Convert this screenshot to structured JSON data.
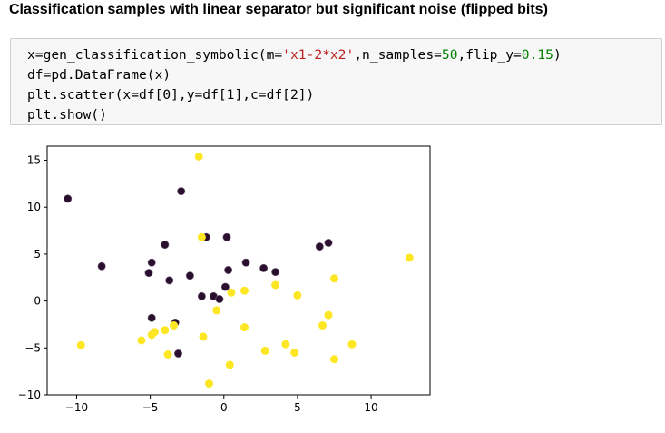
{
  "heading": "Classification samples with linear separator but significant noise (flipped bits)",
  "code": {
    "lines": [
      [
        "x=gen_classification_symbolic(m=",
        "'x1-2*x2'",
        ",n_samples=",
        "50",
        ",flip_y=",
        "0.15",
        ")"
      ],
      [
        "df=pd.DataFrame(x)"
      ],
      [
        "plt.scatter(x=df[0],y=df[1],c=df[2])"
      ],
      [
        "plt.show()"
      ]
    ]
  },
  "chart_data": {
    "type": "scatter",
    "xlim": [
      -12,
      14
    ],
    "ylim": [
      -10,
      16.5
    ],
    "xticks": [
      -10,
      -5,
      0,
      5,
      10
    ],
    "yticks": [
      -10,
      -5,
      0,
      5,
      10,
      15
    ],
    "colors": {
      "0": "#2b0f2e",
      "1": "#fde725"
    },
    "grid": false,
    "series": [
      {
        "class": 0,
        "points": [
          [
            -10.6,
            10.9
          ],
          [
            -8.3,
            3.7
          ],
          [
            -5.1,
            3.0
          ],
          [
            -4.9,
            4.1
          ],
          [
            -4.0,
            6.0
          ],
          [
            -3.7,
            2.2
          ],
          [
            -4.9,
            -1.8
          ],
          [
            -3.3,
            -2.3
          ],
          [
            -3.1,
            -5.6
          ],
          [
            -2.9,
            11.7
          ],
          [
            -2.3,
            2.7
          ],
          [
            -1.5,
            0.5
          ],
          [
            -1.2,
            6.8
          ],
          [
            -0.7,
            0.5
          ],
          [
            -0.3,
            0.2
          ],
          [
            0.1,
            1.5
          ],
          [
            0.2,
            6.8
          ],
          [
            0.3,
            3.3
          ],
          [
            1.5,
            4.1
          ],
          [
            2.7,
            3.5
          ],
          [
            3.5,
            3.1
          ],
          [
            6.5,
            5.8
          ],
          [
            7.1,
            6.2
          ]
        ]
      },
      {
        "class": 1,
        "points": [
          [
            -1.7,
            15.4
          ],
          [
            -9.7,
            -4.7
          ],
          [
            -5.6,
            -4.2
          ],
          [
            -4.9,
            -3.6
          ],
          [
            -4.7,
            -3.3
          ],
          [
            -4.0,
            -3.1
          ],
          [
            -3.8,
            -5.7
          ],
          [
            -3.4,
            -2.6
          ],
          [
            -1.4,
            -3.8
          ],
          [
            -1.0,
            -8.8
          ],
          [
            -1.5,
            6.8
          ],
          [
            -0.5,
            -1.0
          ],
          [
            0.5,
            0.9
          ],
          [
            1.4,
            1.1
          ],
          [
            1.4,
            -2.8
          ],
          [
            3.5,
            1.7
          ],
          [
            0.4,
            -6.8
          ],
          [
            2.8,
            -5.3
          ],
          [
            4.2,
            -4.6
          ],
          [
            4.8,
            -5.5
          ],
          [
            5.0,
            0.6
          ],
          [
            6.7,
            -2.6
          ],
          [
            7.1,
            -1.5
          ],
          [
            7.5,
            2.4
          ],
          [
            7.5,
            -6.2
          ],
          [
            8.7,
            -4.6
          ],
          [
            12.6,
            4.6
          ]
        ]
      }
    ]
  }
}
